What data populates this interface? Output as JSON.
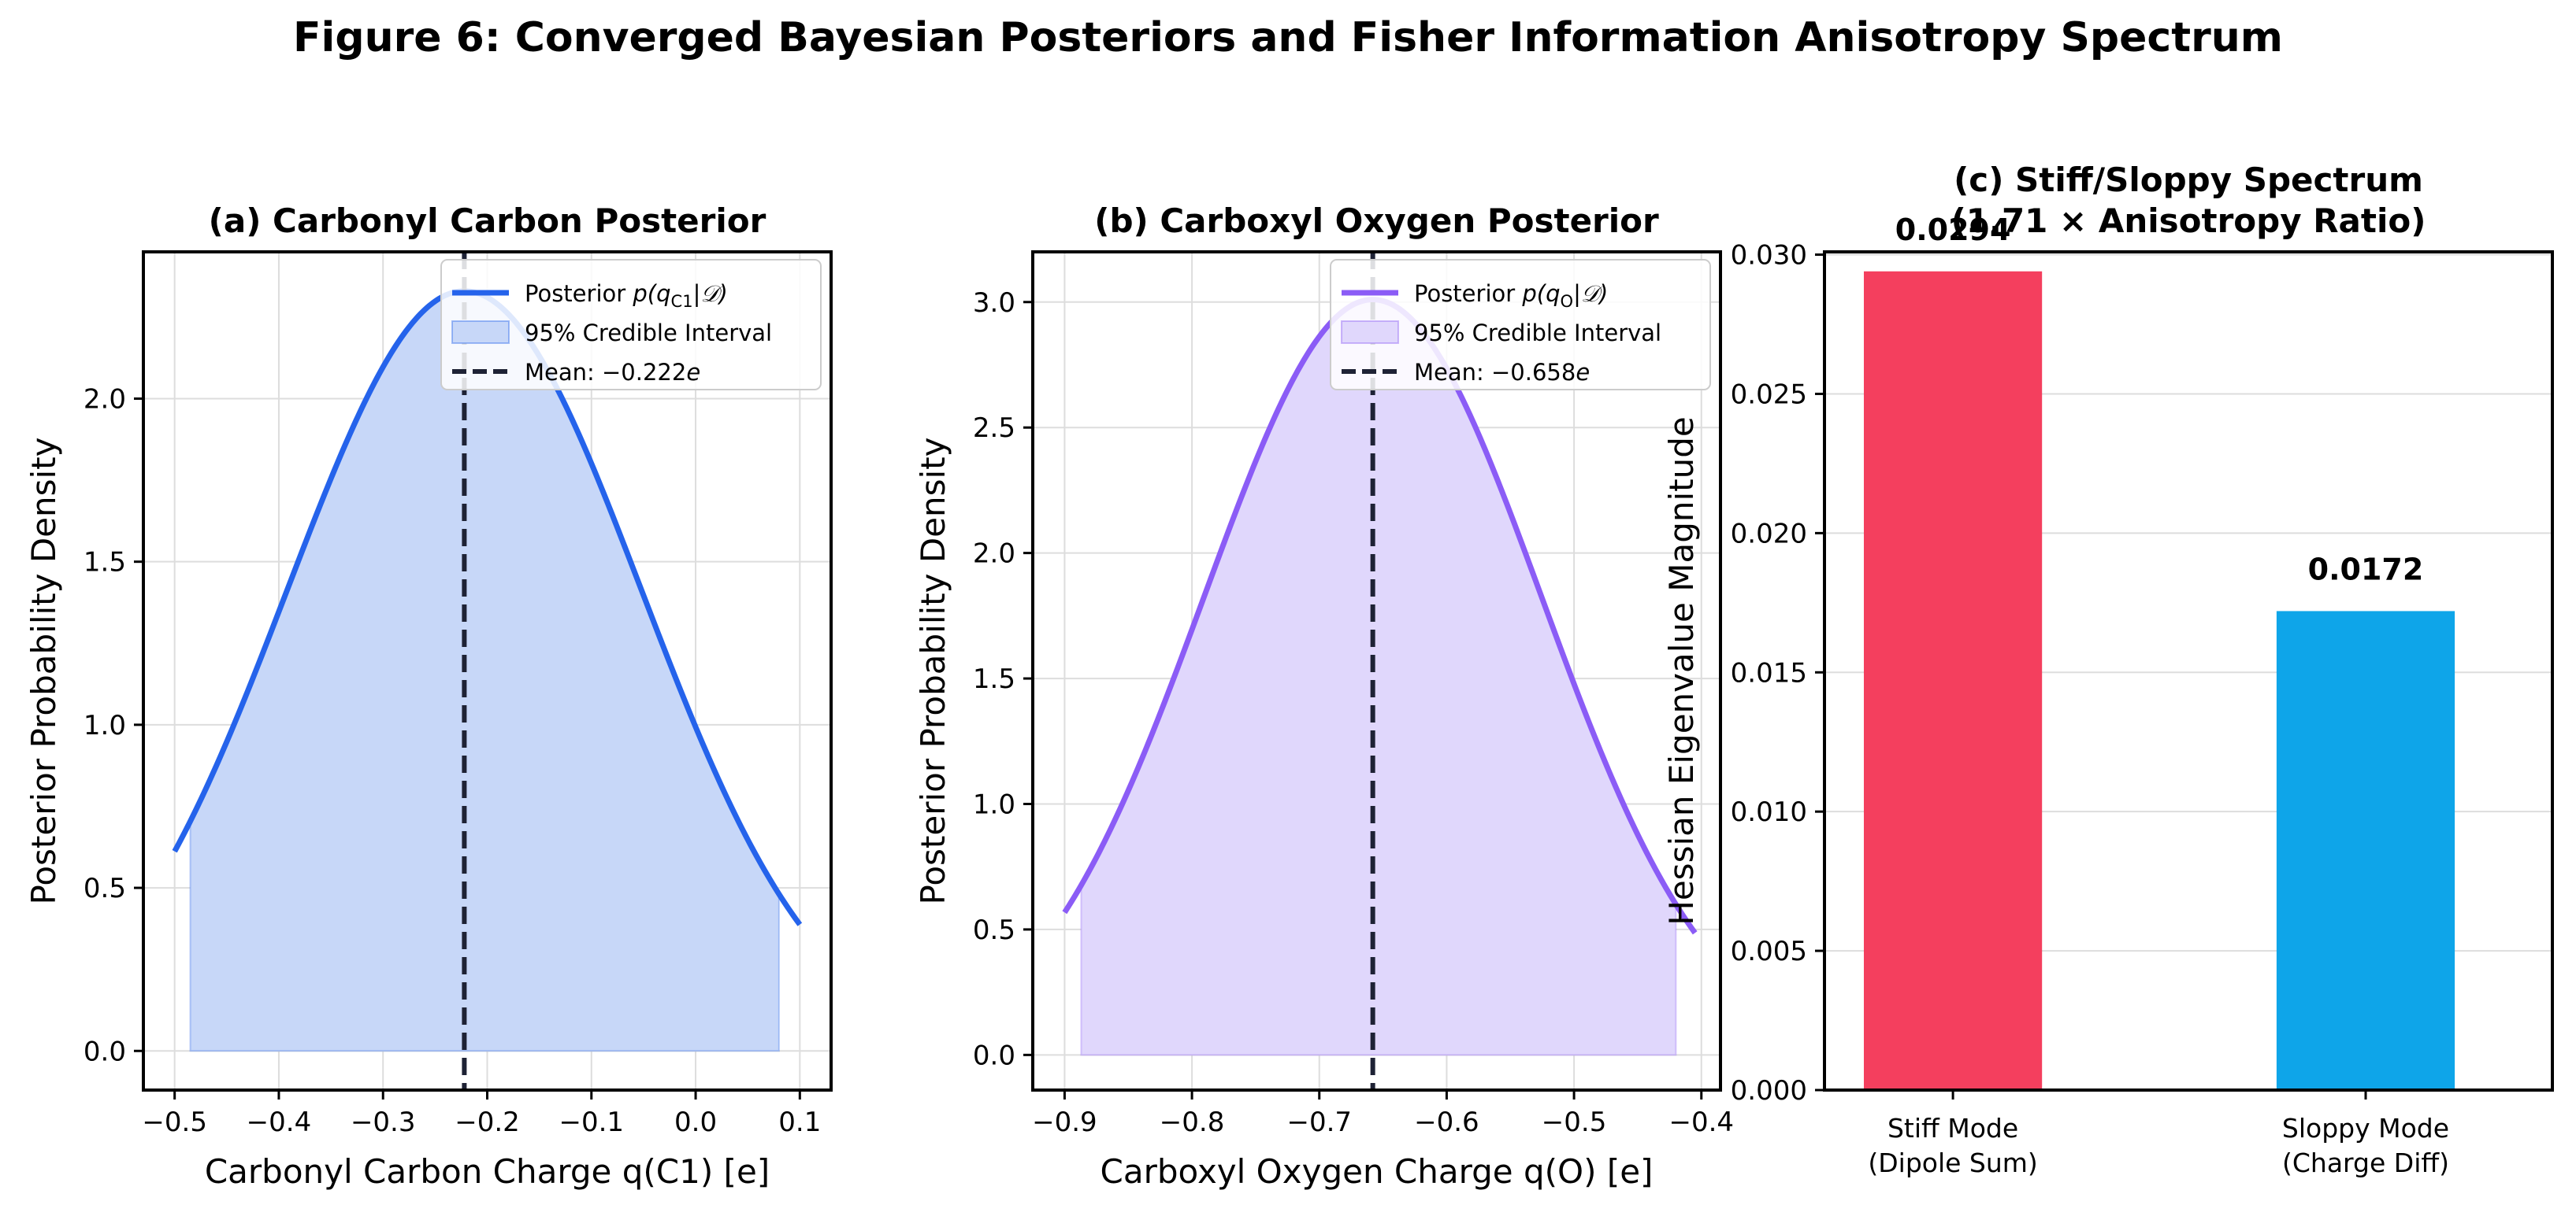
{
  "figure_title": "Figure 6: Converged Bayesian Posteriors and Fisher Information Anisotropy Spectrum",
  "chart_data": [
    {
      "type": "area",
      "title": "(a) Carbonyl Carbon Posterior",
      "xlabel": "Carbonyl Carbon Charge q(C1) [e]",
      "ylabel": "Posterior Probability Density",
      "xlim": [
        -0.53,
        0.13
      ],
      "ylim": [
        -0.12,
        2.45
      ],
      "xticks": [
        -0.5,
        -0.4,
        -0.3,
        -0.2,
        -0.1,
        0.0,
        0.1
      ],
      "xtick_labels": [
        "−0.5",
        "−0.4",
        "−0.3",
        "−0.2",
        "−0.1",
        "0.0",
        "0.1"
      ],
      "yticks": [
        0.0,
        0.5,
        1.0,
        1.5,
        2.0
      ],
      "ytick_labels": [
        "0.0",
        "0.5",
        "1.0",
        "1.5",
        "2.0"
      ],
      "grid": true,
      "legend_position": "top-right",
      "color": "#2563eb",
      "fill_color": "#c7d7f8",
      "posterior": {
        "mean": -0.222,
        "std": 0.17,
        "peak_density": 2.33,
        "x_range": [
          -0.5,
          0.1
        ]
      },
      "credible_interval_95": [
        -0.485,
        0.08
      ],
      "mean_line": -0.222,
      "legend": {
        "posterior_prefix": "Posterior ",
        "posterior_math": "p(q",
        "posterior_sub": "C1",
        "posterior_suffix": "|𝒟)",
        "ci": "95% Credible Interval",
        "mean_prefix": "Mean: ",
        "mean_value": "−0.222",
        "mean_unit": "e"
      }
    },
    {
      "type": "area",
      "title": "(b) Carboxyl Oxygen Posterior",
      "xlabel": "Carboxyl Oxygen Charge q(O) [e]",
      "ylabel": "Posterior Probability Density",
      "xlim": [
        -0.925,
        -0.385
      ],
      "ylim": [
        -0.14,
        3.2
      ],
      "xticks": [
        -0.9,
        -0.8,
        -0.7,
        -0.6,
        -0.5,
        -0.4
      ],
      "xtick_labels": [
        "−0.9",
        "−0.8",
        "−0.7",
        "−0.6",
        "−0.5",
        "−0.4"
      ],
      "yticks": [
        0.0,
        0.5,
        1.0,
        1.5,
        2.0,
        2.5,
        3.0
      ],
      "ytick_labels": [
        "0.0",
        "0.5",
        "1.0",
        "1.5",
        "2.0",
        "2.5",
        "3.0"
      ],
      "grid": true,
      "legend_position": "top-right",
      "color": "#8b5cf6",
      "fill_color": "#e0d7fc",
      "posterior": {
        "mean": -0.658,
        "std": 0.1325,
        "peak_density": 3.01,
        "x_range": [
          -0.9,
          -0.405
        ]
      },
      "credible_interval_95": [
        -0.887,
        -0.42
      ],
      "mean_line": -0.658,
      "legend": {
        "posterior_prefix": "Posterior ",
        "posterior_math": "p(q",
        "posterior_sub": "O",
        "posterior_suffix": "|𝒟)",
        "ci": "95% Credible Interval",
        "mean_prefix": "Mean: ",
        "mean_value": "−0.658",
        "mean_unit": "e"
      }
    },
    {
      "type": "bar",
      "title_line1": "(c) Stiff/Sloppy Spectrum",
      "title_line2": "(1.71 ×  Anisotropy Ratio)",
      "ylabel": "Hessian Eigenvalue Magnitude",
      "ylim": [
        0.0,
        0.0301
      ],
      "yticks": [
        0.0,
        0.005,
        0.01,
        0.015,
        0.02,
        0.025,
        0.03
      ],
      "ytick_labels": [
        "0.000",
        "0.005",
        "0.010",
        "0.015",
        "0.020",
        "0.025",
        "0.030"
      ],
      "grid": true,
      "categories": [
        {
          "line1": "Stiff Mode",
          "line2": "(Dipole Sum)"
        },
        {
          "line1": "Sloppy Mode",
          "line2": "(Charge Diff)"
        }
      ],
      "values": [
        0.0294,
        0.0172
      ],
      "value_labels": [
        "0.0294",
        "0.0172"
      ],
      "colors": [
        "#f43f5e",
        "#0ea5e9"
      ]
    }
  ]
}
